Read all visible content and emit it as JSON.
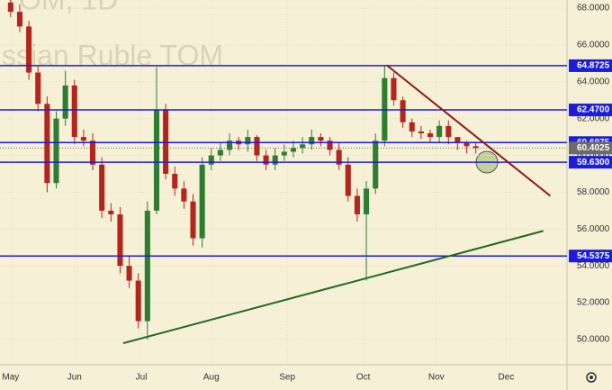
{
  "chart_data": {
    "type": "candlestick",
    "watermark": [
      "TOM, 1D",
      "ssian Ruble TOM"
    ],
    "x": [
      0,
      3,
      6,
      9,
      12,
      15,
      18,
      21,
      24,
      27,
      30,
      33,
      36,
      39,
      42,
      45,
      48,
      51,
      54,
      57,
      60,
      63,
      66,
      69,
      72,
      75,
      78,
      81,
      84,
      87,
      90,
      93,
      96,
      99,
      102,
      105,
      108,
      111,
      114,
      117,
      120,
      123,
      126,
      129,
      132,
      135,
      138,
      141,
      144,
      147,
      150,
      153
    ],
    "open": [
      68.3,
      67.8,
      67.0,
      64.5,
      62.8,
      58.5,
      62.0,
      63.8,
      61.0,
      60.8,
      59.5,
      57.0,
      56.8,
      54.0,
      53.2,
      51.0,
      57.0,
      62.5,
      59.0,
      58.2,
      57.5,
      55.5,
      59.5,
      60.0,
      60.3,
      60.8,
      60.6,
      61.0,
      60.0,
      59.5,
      60.0,
      60.2,
      60.4,
      60.6,
      61.0,
      60.8,
      60.3,
      59.5,
      57.8,
      56.8,
      58.2,
      60.8,
      64.2,
      63.0,
      61.8,
      61.3,
      61.2,
      61.0,
      61.6,
      61.0,
      60.7,
      60.5
    ],
    "high": [
      68.6,
      68.2,
      67.3,
      64.9,
      63.2,
      62.4,
      64.6,
      64.1,
      61.4,
      61.2,
      59.9,
      57.4,
      57.2,
      54.5,
      53.6,
      57.5,
      64.8,
      62.8,
      59.4,
      58.6,
      57.9,
      59.9,
      60.4,
      60.7,
      61.2,
      61.0,
      61.4,
      61.1,
      60.3,
      60.4,
      60.6,
      60.8,
      61.0,
      61.4,
      61.2,
      61.0,
      60.7,
      59.9,
      58.2,
      58.6,
      61.2,
      64.9,
      64.5,
      63.2,
      62.0,
      61.6,
      61.4,
      61.9,
      61.9,
      61.0,
      60.8,
      60.7
    ],
    "low": [
      67.5,
      66.7,
      64.1,
      62.4,
      58.0,
      58.2,
      61.6,
      60.6,
      60.5,
      59.2,
      56.6,
      56.4,
      53.6,
      52.8,
      50.6,
      50.0,
      56.8,
      58.7,
      57.8,
      57.1,
      55.1,
      55.0,
      59.2,
      59.7,
      60.0,
      60.3,
      60.2,
      59.7,
      59.2,
      59.2,
      59.7,
      59.9,
      60.1,
      60.3,
      60.5,
      60.0,
      59.2,
      57.5,
      56.4,
      53.2,
      57.9,
      60.5,
      62.7,
      61.5,
      61.0,
      60.9,
      60.7,
      60.7,
      60.6,
      60.3,
      60.1,
      60.1
    ],
    "close": [
      67.8,
      67.0,
      64.5,
      62.8,
      58.5,
      62.0,
      63.8,
      61.0,
      60.8,
      59.5,
      57.0,
      56.8,
      54.0,
      53.2,
      51.0,
      57.0,
      62.5,
      59.0,
      58.2,
      57.5,
      55.5,
      59.5,
      60.0,
      60.3,
      60.8,
      60.6,
      61.0,
      60.0,
      59.5,
      60.0,
      60.2,
      60.4,
      60.6,
      61.0,
      60.8,
      60.3,
      59.5,
      57.8,
      56.8,
      58.2,
      60.8,
      64.2,
      63.0,
      61.8,
      61.3,
      61.2,
      61.0,
      61.6,
      61.0,
      60.7,
      60.5,
      60.4
    ],
    "up_color": "#2f7d32",
    "down_color": "#b3261e",
    "levels": [
      64.8725,
      {
        "value": 62.47,
        "label": "62.4700"
      },
      60.6975,
      {
        "value": 59.63,
        "label": "59.6300"
      },
      54.5375
    ],
    "level_color": "#1c1cdc",
    "last_price": 60.4025,
    "last_price_color": "#6b6b6b",
    "trend_lines": [
      {
        "color": "#8b1a1a",
        "x": [
          123.7,
          177.5
        ],
        "values": [
          64.9,
          57.8
        ]
      },
      {
        "color": "#1e6b1e",
        "x": [
          37,
          175.2
        ],
        "values": [
          49.8,
          55.9
        ]
      }
    ],
    "xlim": [
      -3.5,
      183
    ],
    "ylim": [
      48.63,
      68.44
    ],
    "xticks": [
      {
        "value": 0,
        "label": "May"
      },
      {
        "value": 21,
        "label": "Jun"
      },
      {
        "value": 43,
        "label": "Jul"
      },
      {
        "value": 66,
        "label": "Aug"
      },
      {
        "value": 91,
        "label": "Sep"
      },
      {
        "value": 116,
        "label": "Oct"
      },
      {
        "value": 140,
        "label": "Nov"
      },
      {
        "value": 163,
        "label": "Dec"
      }
    ],
    "yticks": [
      {
        "value": 50,
        "label": "50.0000"
      },
      {
        "value": 52,
        "label": "52.0000"
      },
      {
        "value": 54,
        "label": "54.0000"
      },
      {
        "value": 56,
        "label": "56.0000"
      },
      {
        "value": 58,
        "label": "58.0000"
      },
      {
        "value": 60,
        "label": "60.0000"
      },
      {
        "value": 62,
        "label": "62.0000"
      },
      {
        "value": 64,
        "label": "64.0000"
      },
      {
        "value": 66,
        "label": "66.0000"
      },
      {
        "value": 68,
        "label": "68.0000"
      }
    ],
    "grid": true
  }
}
